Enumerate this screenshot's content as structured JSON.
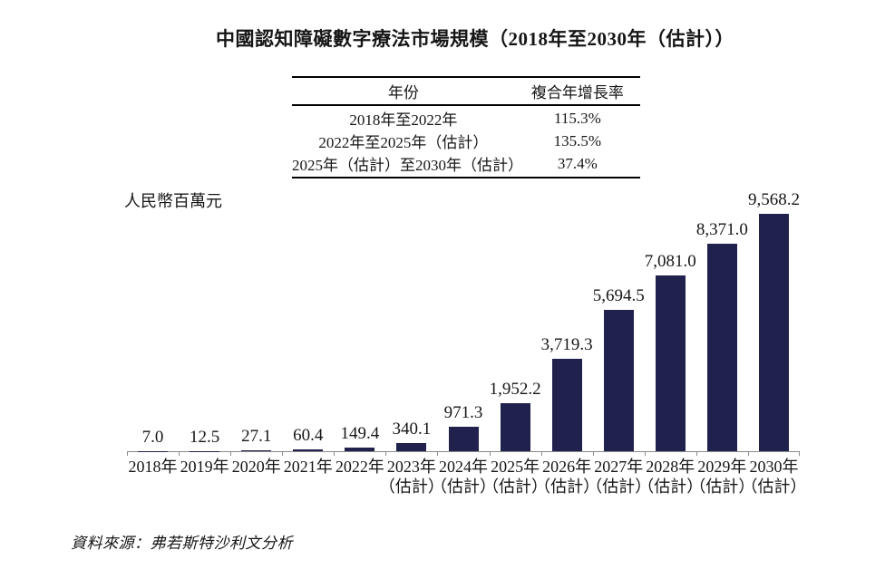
{
  "title": "中國認知障礙數字療法市場規模（2018年至2030年（估計））",
  "unit_label": "人民幣百萬元",
  "source": "資料來源：弗若斯特沙利文分析",
  "table": {
    "headers": [
      "年份",
      "複合年增長率"
    ],
    "rows": [
      {
        "period": "2018年至2022年",
        "cagr": "115.3%"
      },
      {
        "period": "2022年至2025年（估計）",
        "cagr": "135.5%"
      },
      {
        "period": "2025年（估計）至2030年（估計）",
        "cagr": "37.4%"
      }
    ]
  },
  "chart_data": {
    "type": "bar",
    "title": "中國認知障礙數字療法市場規模（2018年至2030年（估計））",
    "ylabel": "人民幣百萬元",
    "xlabel": "",
    "ylim": [
      0,
      9568.2
    ],
    "grid": false,
    "legend": "none",
    "bar_color": "#21214e",
    "axis_color": "#8a8a8a",
    "categories": [
      "2018年",
      "2019年",
      "2020年",
      "2021年",
      "2022年",
      "2023年",
      "2024年",
      "2025年",
      "2026年",
      "2027年",
      "2028年",
      "2029年",
      "2030年"
    ],
    "category_notes": [
      "",
      "",
      "",
      "",
      "",
      "（估計）",
      "（估計）",
      "（估計）",
      "（估計）",
      "（估計）",
      "（估計）",
      "（估計）",
      "（估計）"
    ],
    "values": [
      7.0,
      12.5,
      27.1,
      60.4,
      149.4,
      340.1,
      971.3,
      1952.2,
      3719.3,
      5694.5,
      7081.0,
      8371.0,
      9568.2
    ],
    "value_labels": [
      "7.0",
      "12.5",
      "27.1",
      "60.4",
      "149.4",
      "340.1",
      "971.3",
      "1,952.2",
      "3,719.3",
      "5,694.5",
      "7,081.0",
      "8,371.0",
      "9,568.2"
    ]
  }
}
